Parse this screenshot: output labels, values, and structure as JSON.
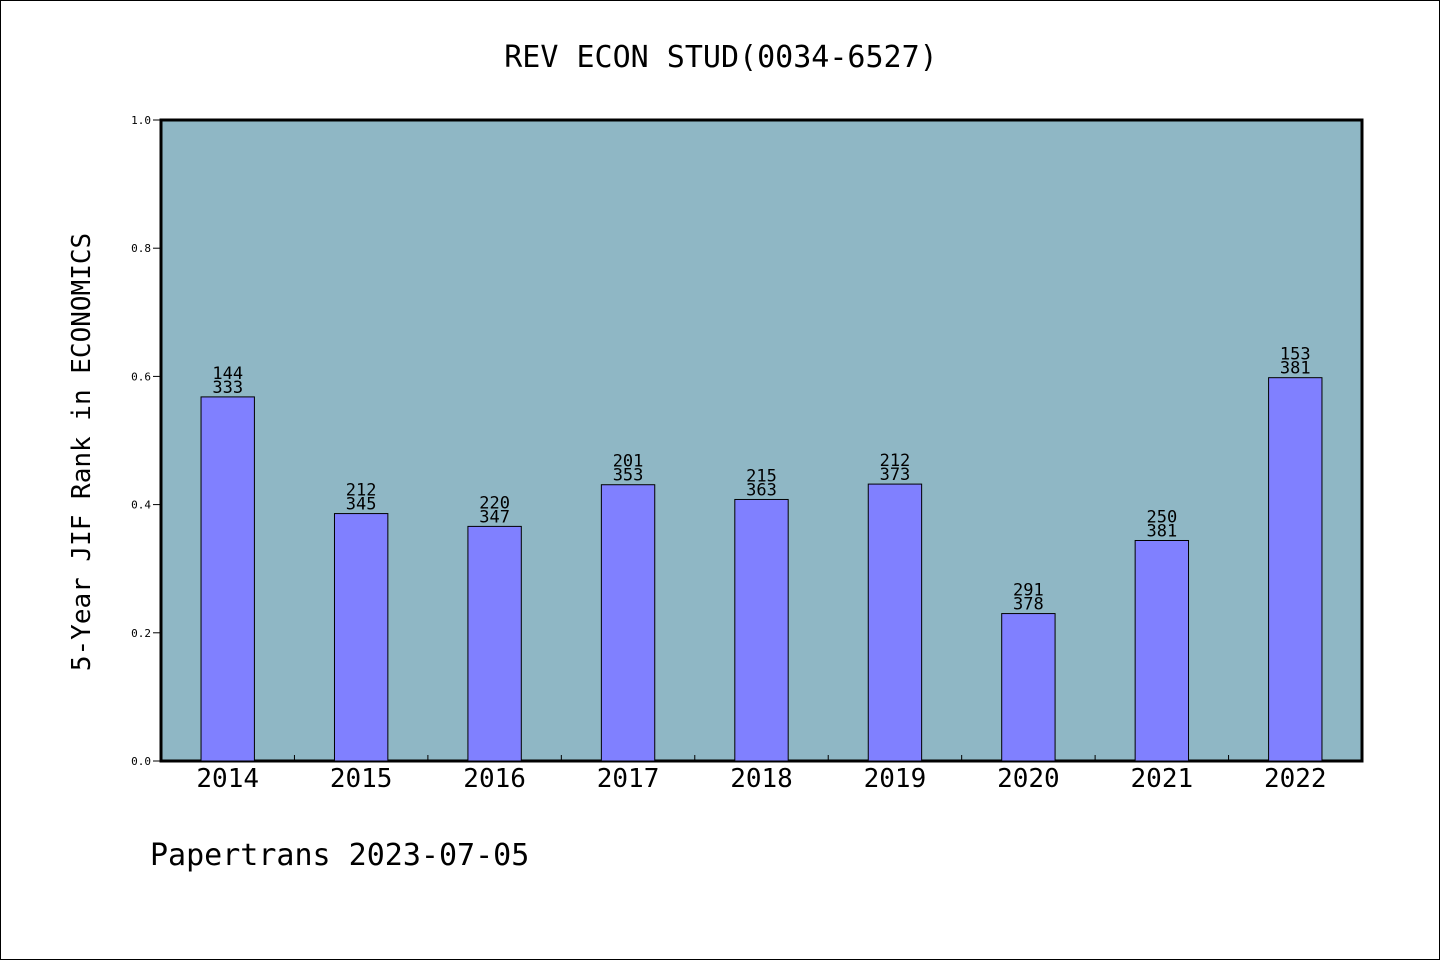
{
  "chart_data": {
    "type": "bar",
    "title": "REV ECON STUD(0034-6527)",
    "xlabel": "",
    "ylabel": "5-Year JIF Rank in ECONOMICS",
    "footer": "Papertrans 2023-07-05",
    "ylim": [
      0,
      1.0
    ],
    "yticks": [
      "0.0",
      "0.2",
      "0.4",
      "0.6",
      "0.8",
      "1.0"
    ],
    "categories": [
      "2014",
      "2015",
      "2016",
      "2017",
      "2018",
      "2019",
      "2020",
      "2021",
      "2022"
    ],
    "values": [
      0.568,
      0.386,
      0.366,
      0.431,
      0.408,
      0.432,
      0.23,
      0.344,
      0.598
    ],
    "labels_top": [
      "144",
      "212",
      "220",
      "201",
      "215",
      "212",
      "291",
      "250",
      "153"
    ],
    "labels_bottom": [
      "333",
      "345",
      "347",
      "353",
      "363",
      "373",
      "378",
      "381",
      "381"
    ],
    "grid": false,
    "legend": "none",
    "colors": {
      "plot_bg": "#8fb7c5",
      "bar": "#8080ff",
      "bar_edge": "#000000"
    }
  }
}
